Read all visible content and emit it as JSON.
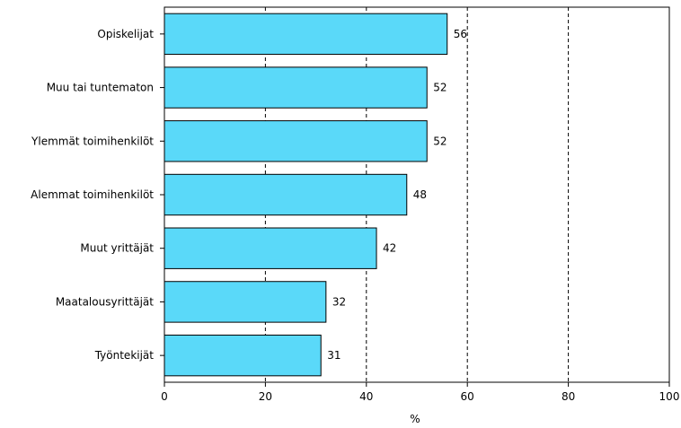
{
  "chart_data": {
    "type": "bar",
    "orientation": "horizontal",
    "categories": [
      "Opiskelijat",
      "Muu tai tuntematon",
      "Ylemmät toimihenkilöt",
      "Alemmat toimihenkilöt",
      "Muut yrittäjät",
      "Maatalousyrittäjät",
      "Työntekijät"
    ],
    "values": [
      56,
      52,
      52,
      48,
      42,
      32,
      31
    ],
    "xlabel": "%",
    "xlim": [
      0,
      100
    ],
    "xticks": [
      "0",
      "20",
      "40",
      "60",
      "80",
      "100"
    ],
    "grid": "vertical dashed",
    "colors": {
      "bar_fill": "#5ad9f9",
      "bar_stroke": "#000000"
    }
  }
}
